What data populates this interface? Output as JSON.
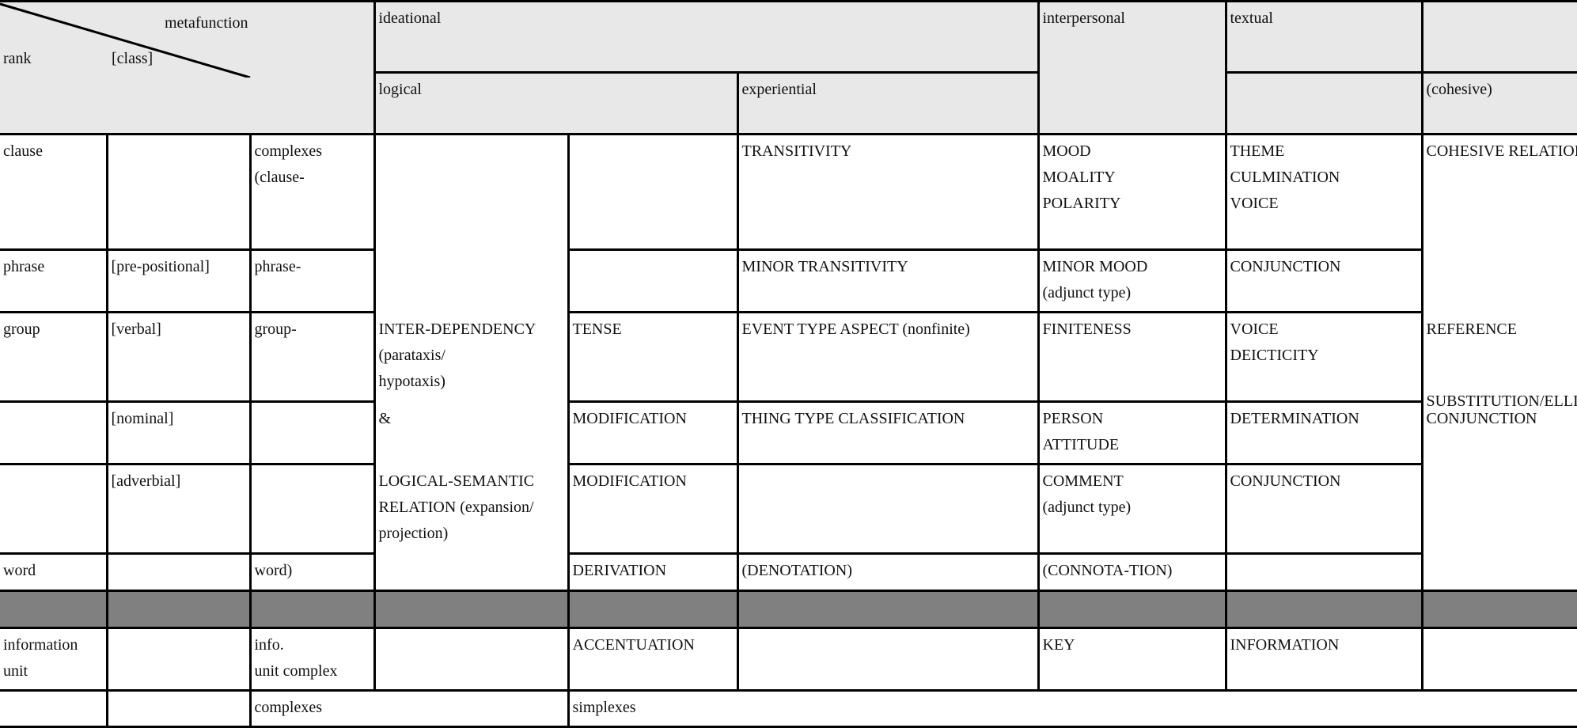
{
  "header": {
    "metafunction": "metafunction",
    "rank": "rank",
    "class": "[class]",
    "ideational": "ideational",
    "interpersonal": "interpersonal",
    "textual": "textual",
    "logical": "logical",
    "experiential": "experiential",
    "cohesive": "(cohesive)"
  },
  "logical_merged": {
    "interdependency": "INTER-DEPENDENCY\n(parataxis/\nhypotaxis)",
    "and": "&",
    "logical_semantic": "LOGICAL-SEMANTIC\nRELATION (expansion/\nprojection)"
  },
  "cohesive_merged": {
    "cohesive_relations": "COHESIVE RELATIONS",
    "reference": "REFERENCE",
    "substitution": "SUBSTITUTION/ELLIPSIS",
    "conjunction": "CONJUNCTION"
  },
  "rows": [
    {
      "rank": "clause",
      "class": "",
      "complex": "complexes\n(clause-",
      "logical2": "",
      "experiential": "TRANSITIVITY",
      "interpersonal": "MOOD\nMOALITY\nPOLARITY",
      "textual": "THEME\nCULMINATION\nVOICE"
    },
    {
      "rank": "phrase",
      "class": "[pre-positional]",
      "complex": "phrase-",
      "logical2": "",
      "experiential": "MINOR TRANSITIVITY",
      "interpersonal": "MINOR MOOD\n(adjunct type)",
      "textual": "CONJUNCTION"
    },
    {
      "rank": "group",
      "class": "[verbal]",
      "complex": "group-",
      "logical2": "TENSE",
      "experiential": "EVENT TYPE ASPECT (nonfinite)",
      "interpersonal": "FINITENESS",
      "textual": "VOICE\nDEICTICITY"
    },
    {
      "rank": "",
      "class": "[nominal]",
      "complex": "",
      "logical2": "MODIFICATION",
      "experiential": "THING TYPE CLASSIFICATION",
      "interpersonal": "PERSON\nATTITUDE",
      "textual": "DETERMINATION"
    },
    {
      "rank": "",
      "class": "[adverbial]",
      "complex": "",
      "logical2": "MODIFICATION",
      "experiential": "",
      "interpersonal": "COMMENT\n(adjunct type)",
      "textual": "CONJUNCTION"
    },
    {
      "rank": "word",
      "class": "",
      "complex": "word)",
      "logical2": "DERIVATION",
      "experiential": "(DENOTATION)",
      "interpersonal": "(CONNOTA-TION)",
      "textual": ""
    }
  ],
  "info_row": {
    "rank": "information\nunit",
    "class": "",
    "complex": "info.\nunit complex",
    "logical1": "",
    "logical2": "ACCENTUATION",
    "experiential": "",
    "interpersonal": "KEY",
    "textual": "INFORMATION",
    "cohesive": ""
  },
  "footer_row": {
    "complexes": "complexes",
    "simplexes": "simplexes"
  },
  "colors": {
    "header_bg": "#e8e8e8",
    "separator": "#808080",
    "border": "#000000"
  }
}
